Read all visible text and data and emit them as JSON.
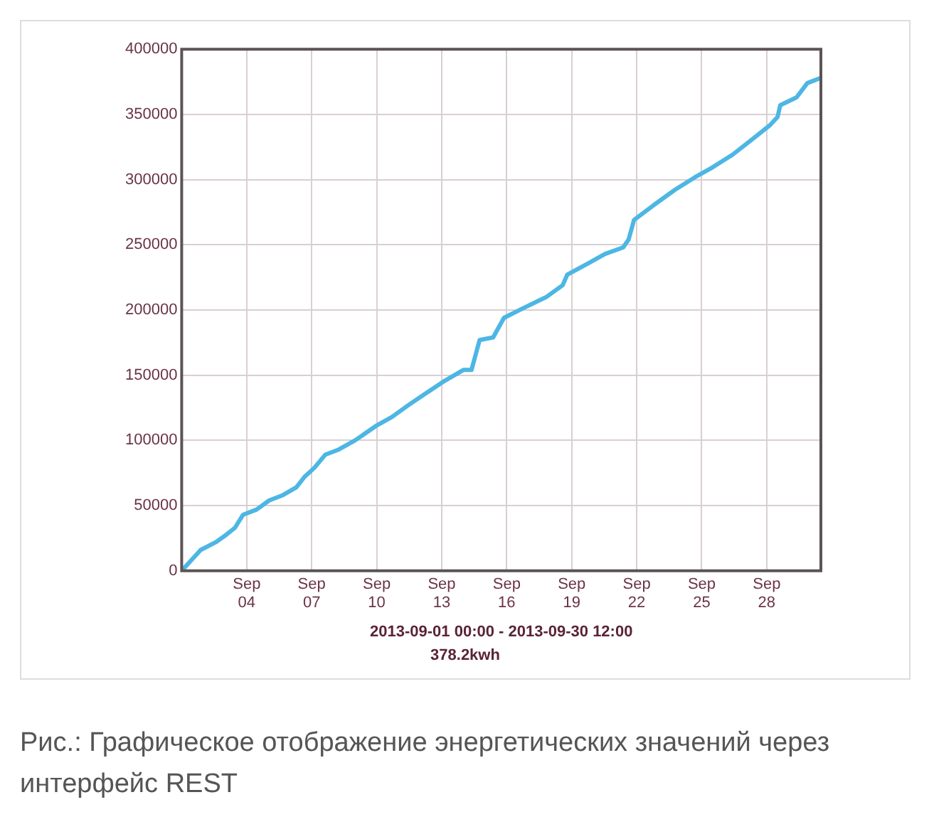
{
  "chart_data": {
    "type": "line",
    "xlabel": "2013-09-01 00:00 - 2013-09-30 12:00",
    "annotations": [
      "378.2kwh",
      "Рис.: Графическое отображение энергетических значений через интерфейс REST"
    ],
    "x": [
      "2013-09-01T00:00",
      "2013-09-01T21:00",
      "2013-09-02T14:00",
      "2013-09-03T02:00",
      "2013-09-03T11:00",
      "2013-09-03T20:00",
      "2013-09-04T11:00",
      "2013-09-05T01:00",
      "2013-09-05T16:00",
      "2013-09-06T07:00",
      "2013-09-06T16:00",
      "2013-09-07T03:00",
      "2013-09-07T15:00",
      "2013-09-08T06:00",
      "2013-09-09T00:00",
      "2013-09-09T23:00",
      "2013-09-10T17:00",
      "2013-09-11T11:00",
      "2013-09-12T04:00",
      "2013-09-13T04:00",
      "2013-09-14T00:00",
      "2013-09-14T09:00",
      "2013-09-14T18:00",
      "2013-09-15T09:00",
      "2013-09-15T21:00",
      "2013-09-16T20:00",
      "2013-09-17T20:00",
      "2013-09-18T14:00",
      "2013-09-18T19:00",
      "2013-09-19T19:00",
      "2013-09-20T13:00",
      "2013-09-21T09:00",
      "2013-09-21T15:00",
      "2013-09-21T21:00",
      "2013-09-22T18:00",
      "2013-09-23T18:00",
      "2013-09-24T17:00",
      "2013-09-25T11:00",
      "2013-09-26T10:00",
      "2013-09-27T10:00",
      "2013-09-28T04:00",
      "2013-09-28T12:00",
      "2013-09-28T15:00",
      "2013-09-29T09:00",
      "2013-09-29T21:00",
      "2013-09-30T12:00"
    ],
    "series": [
      {
        "color": "#4db6e4",
        "values": [
          0,
          16000,
          22000,
          28000,
          33000,
          43000,
          47000,
          54000,
          58000,
          64000,
          72000,
          79000,
          89000,
          93000,
          100000,
          111000,
          118000,
          127000,
          135000,
          146000,
          154000,
          154000,
          177000,
          179000,
          194000,
          202000,
          210000,
          219000,
          227000,
          236000,
          243000,
          248000,
          254000,
          269000,
          280000,
          292000,
          302000,
          309000,
          319000,
          332000,
          342000,
          348000,
          357000,
          363000,
          374000,
          378000
        ]
      }
    ],
    "xlim": [
      "2013-09-01T00:00",
      "2013-09-30T12:00"
    ],
    "xticks": [
      {
        "value": "2013-09-04",
        "label": "Sep 04"
      },
      {
        "value": "2013-09-07",
        "label": "Sep 07"
      },
      {
        "value": "2013-09-10",
        "label": "Sep 10"
      },
      {
        "value": "2013-09-13",
        "label": "Sep 13"
      },
      {
        "value": "2013-09-16",
        "label": "Sep 16"
      },
      {
        "value": "2013-09-19",
        "label": "Sep 19"
      },
      {
        "value": "2013-09-22",
        "label": "Sep 22"
      },
      {
        "value": "2013-09-25",
        "label": "Sep 25"
      },
      {
        "value": "2013-09-28",
        "label": "Sep 28"
      }
    ],
    "ylim": [
      0,
      400000
    ],
    "yticks": [
      0,
      50000,
      100000,
      150000,
      200000,
      250000,
      300000,
      350000,
      400000
    ],
    "grid": true,
    "legend": false,
    "marker": "none",
    "line_style": "solid"
  }
}
